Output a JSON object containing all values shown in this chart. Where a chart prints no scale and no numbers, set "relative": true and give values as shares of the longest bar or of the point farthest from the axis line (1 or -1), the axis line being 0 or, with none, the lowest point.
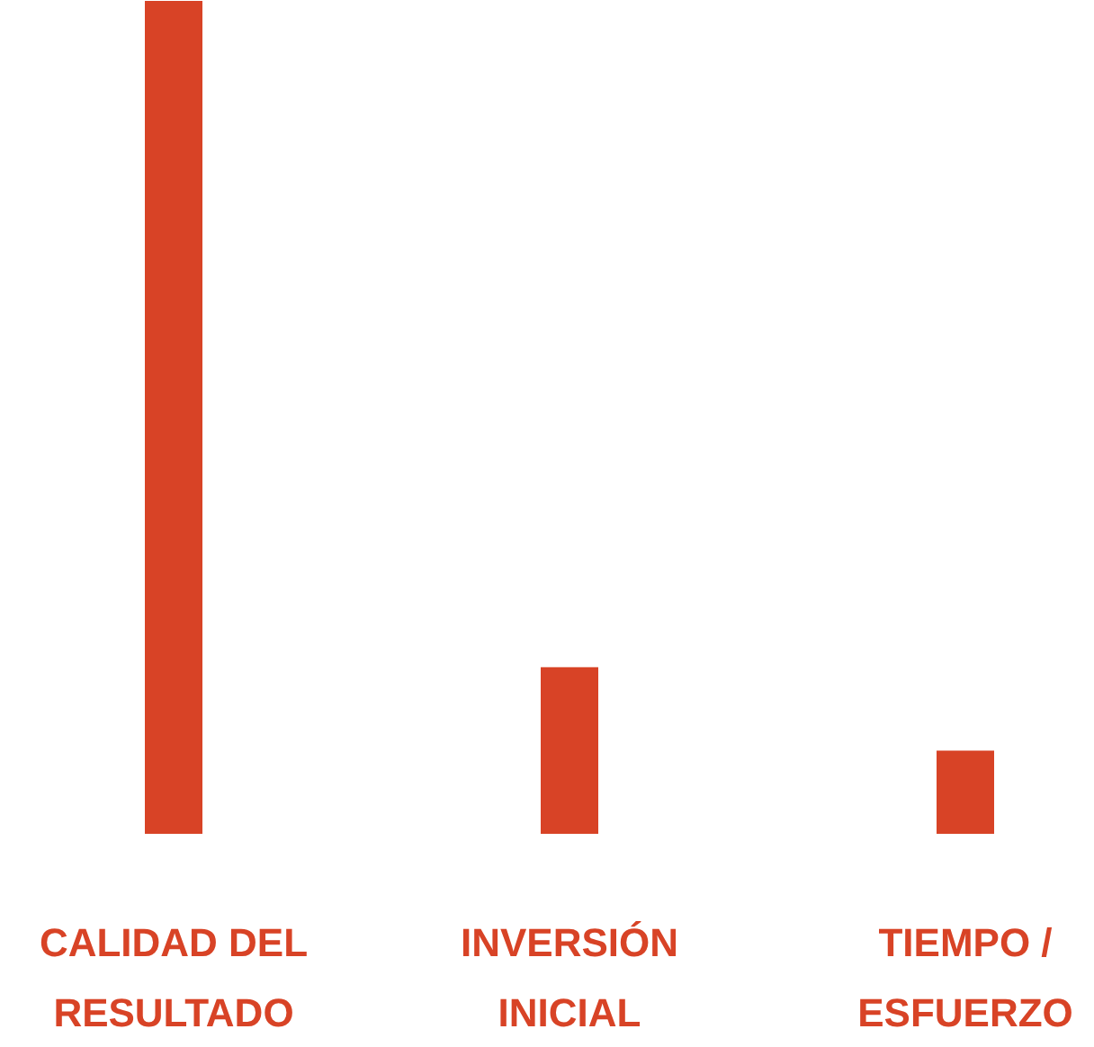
{
  "chart_data": {
    "type": "bar",
    "relative": true,
    "categories": [
      "CALIDAD DEL RESULTADO",
      "INVERSIÓN INICIAL",
      "TIEMPO / ESFUERZO"
    ],
    "values": [
      1,
      0.2,
      0.1
    ],
    "color": "#d84326"
  }
}
